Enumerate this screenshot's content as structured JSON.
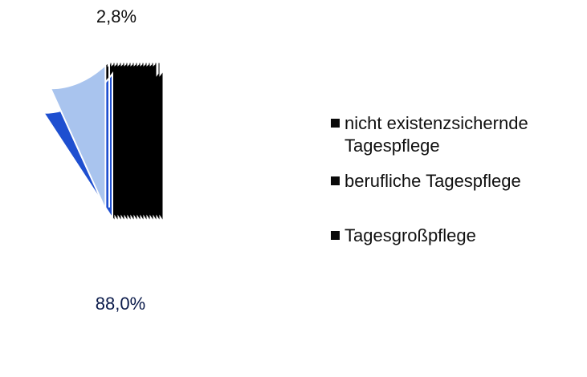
{
  "chart_data": {
    "type": "pie",
    "categories": [
      "nicht existenzsichernde Tagespflege",
      "berufliche Tagespflege",
      "Tagesgroßpflege"
    ],
    "values": [
      88.0,
      2.8,
      9.2
    ],
    "value_labels": [
      "88,0%",
      "2,8%",
      null
    ],
    "colors": [
      "#1e4fd0",
      "#a9c4ee",
      "#0a0a0a"
    ],
    "legend_colors": [
      "#0a0a0a",
      "#0a0a0a",
      "#0a0a0a"
    ],
    "legend": "right"
  }
}
